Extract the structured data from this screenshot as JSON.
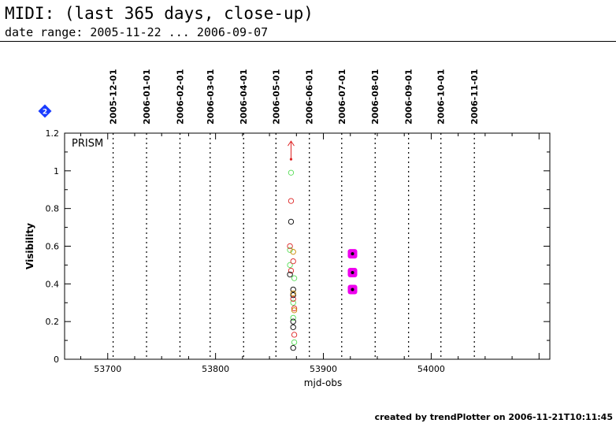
{
  "header": {
    "title": "MIDI: (last 365 days, close-up)",
    "subtitle": "date range: 2005-11-22 ... 2006-09-07"
  },
  "footer": {
    "text": "created by trendPlotter on 2006-11-21T10:11:45"
  },
  "chart_data": {
    "type": "scatter",
    "panel_label": "PRISM",
    "badge_text": "2",
    "xlabel": "mjd-obs",
    "ylabel": "Visibility",
    "xlim": [
      53660,
      54110
    ],
    "ylim": [
      0,
      1.2
    ],
    "x_ticks": [
      53700,
      53800,
      53900,
      54000
    ],
    "x_tick_labels": [
      "53700",
      "53800",
      "53900",
      "54000"
    ],
    "y_ticks": [
      0,
      0.2,
      0.4,
      0.6,
      0.8,
      1,
      1.2
    ],
    "y_tick_labels": [
      "0",
      "0.2",
      "0.4",
      "0.6",
      "0.8",
      "1",
      "1.2"
    ],
    "date_markers": [
      {
        "label": "2005-12-01",
        "mjd": 53705
      },
      {
        "label": "2006-01-01",
        "mjd": 53736
      },
      {
        "label": "2006-02-01",
        "mjd": 53767
      },
      {
        "label": "2006-03-01",
        "mjd": 53795
      },
      {
        "label": "2006-04-01",
        "mjd": 53826
      },
      {
        "label": "2006-05-01",
        "mjd": 53856
      },
      {
        "label": "2006-06-01",
        "mjd": 53887
      },
      {
        "label": "2006-07-01",
        "mjd": 53917
      },
      {
        "label": "2006-08-01",
        "mjd": 53948
      },
      {
        "label": "2006-09-01",
        "mjd": 53979
      },
      {
        "label": "2006-10-01",
        "mjd": 54009
      },
      {
        "label": "2006-11-01",
        "mjd": 54040
      }
    ],
    "colors": {
      "green": "#55dd55",
      "red": "#dd2222",
      "black": "#000000",
      "orange": "#cc8800",
      "magenta": "#ee00ee",
      "badge_blue": "#1a3cff"
    },
    "series": [
      {
        "color": "green",
        "style": "open-circle",
        "points": [
          {
            "x": 53870,
            "y": 0.99
          },
          {
            "x": 53869,
            "y": 0.58
          },
          {
            "x": 53869,
            "y": 0.5
          },
          {
            "x": 53873,
            "y": 0.43
          },
          {
            "x": 53872,
            "y": 0.3
          },
          {
            "x": 53872,
            "y": 0.22
          },
          {
            "x": 53873,
            "y": 0.09
          }
        ]
      },
      {
        "color": "red",
        "style": "open-circle",
        "points": [
          {
            "x": 53870,
            "y": 0.84
          },
          {
            "x": 53869,
            "y": 0.6
          },
          {
            "x": 53872,
            "y": 0.52
          },
          {
            "x": 53870,
            "y": 0.47
          },
          {
            "x": 53872,
            "y": 0.32
          },
          {
            "x": 53873,
            "y": 0.27
          },
          {
            "x": 53873,
            "y": 0.13
          }
        ]
      },
      {
        "color": "black",
        "style": "open-circle",
        "points": [
          {
            "x": 53870,
            "y": 0.73
          },
          {
            "x": 53869,
            "y": 0.45
          },
          {
            "x": 53872,
            "y": 0.37
          },
          {
            "x": 53872,
            "y": 0.34
          },
          {
            "x": 53872,
            "y": 0.2
          },
          {
            "x": 53872,
            "y": 0.17
          },
          {
            "x": 53872,
            "y": 0.06
          }
        ]
      },
      {
        "color": "orange",
        "style": "open-circle",
        "points": [
          {
            "x": 53872,
            "y": 0.57
          },
          {
            "x": 53872,
            "y": 0.35
          },
          {
            "x": 53873,
            "y": 0.26
          }
        ]
      },
      {
        "color": "magenta",
        "style": "filled-square-with-dot",
        "points": [
          {
            "x": 53927,
            "y": 0.56
          },
          {
            "x": 53927,
            "y": 0.46
          },
          {
            "x": 53927,
            "y": 0.37
          }
        ]
      }
    ],
    "upper_limit_arrow": {
      "x": 53870,
      "y": 1.12,
      "color": "red"
    }
  }
}
